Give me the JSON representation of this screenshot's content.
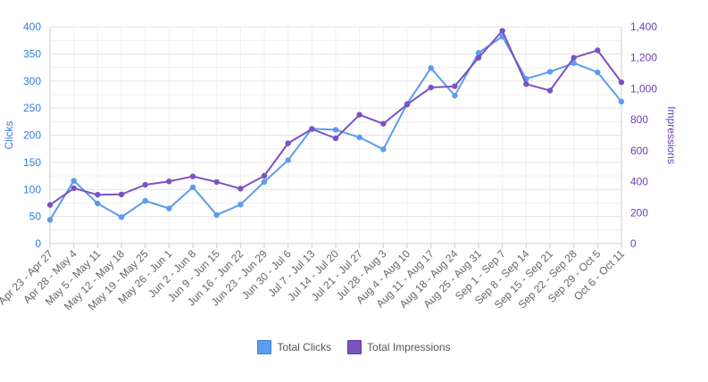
{
  "chart_data": {
    "type": "line",
    "categories": [
      "Apr 23 - Apr 27",
      "Apr 28 - May 4",
      "May 5 - May 11",
      "May 12 - May 18",
      "May 19 - May 25",
      "May 26 - Jun 1",
      "Jun 2 - Jun 8",
      "Jun 9 - Jun 15",
      "Jun 16 - Jun 22",
      "Jun 23 - Jun 29",
      "Jun 30 - Jul 6",
      "Jul 7 - Jul 13",
      "Jul 14 - Jul 20",
      "Jul 21 - Jul 27",
      "Jul 28 - Aug 3",
      "Aug 4 - Aug 10",
      "Aug 11 - Aug 17",
      "Aug 18 - Aug 24",
      "Aug 25 - Aug 31",
      "Sep 1 - Sep 7",
      "Sep 8 - Sep 14",
      "Sep 15 - Sep 21",
      "Sep 22 - Sep 28",
      "Sep 29 - Oct 5",
      "Oct 6 - Oct 11"
    ],
    "series": [
      {
        "name": "Total Clicks",
        "axis": "left",
        "color": "#5b9cee",
        "values": [
          44,
          116,
          74,
          49,
          79,
          65,
          104,
          53,
          72,
          114,
          154,
          212,
          210,
          196,
          174,
          258,
          324,
          273,
          352,
          382,
          304,
          317,
          333,
          316,
          262
        ]
      },
      {
        "name": "Total Impressions",
        "axis": "right",
        "color": "#7b53c1",
        "values": [
          250,
          358,
          316,
          318,
          380,
          402,
          434,
          398,
          355,
          438,
          648,
          740,
          680,
          832,
          774,
          898,
          1008,
          1016,
          1200,
          1374,
          1030,
          988,
          1200,
          1248,
          1042
        ]
      }
    ],
    "ylabel": "Clicks",
    "y2label": "Impressions",
    "ylim": [
      0,
      400
    ],
    "y2lim": [
      0,
      1400
    ],
    "yticks": [
      "0",
      "50",
      "100",
      "150",
      "200",
      "250",
      "300",
      "350",
      "400"
    ],
    "y2ticks": [
      "0",
      "200",
      "400",
      "600",
      "800",
      "1,000",
      "1,200",
      "1,400"
    ],
    "grid": true,
    "legend_position": "bottom"
  },
  "legend": {
    "clicks_label": "Total Clicks",
    "impressions_label": "Total Impressions"
  }
}
